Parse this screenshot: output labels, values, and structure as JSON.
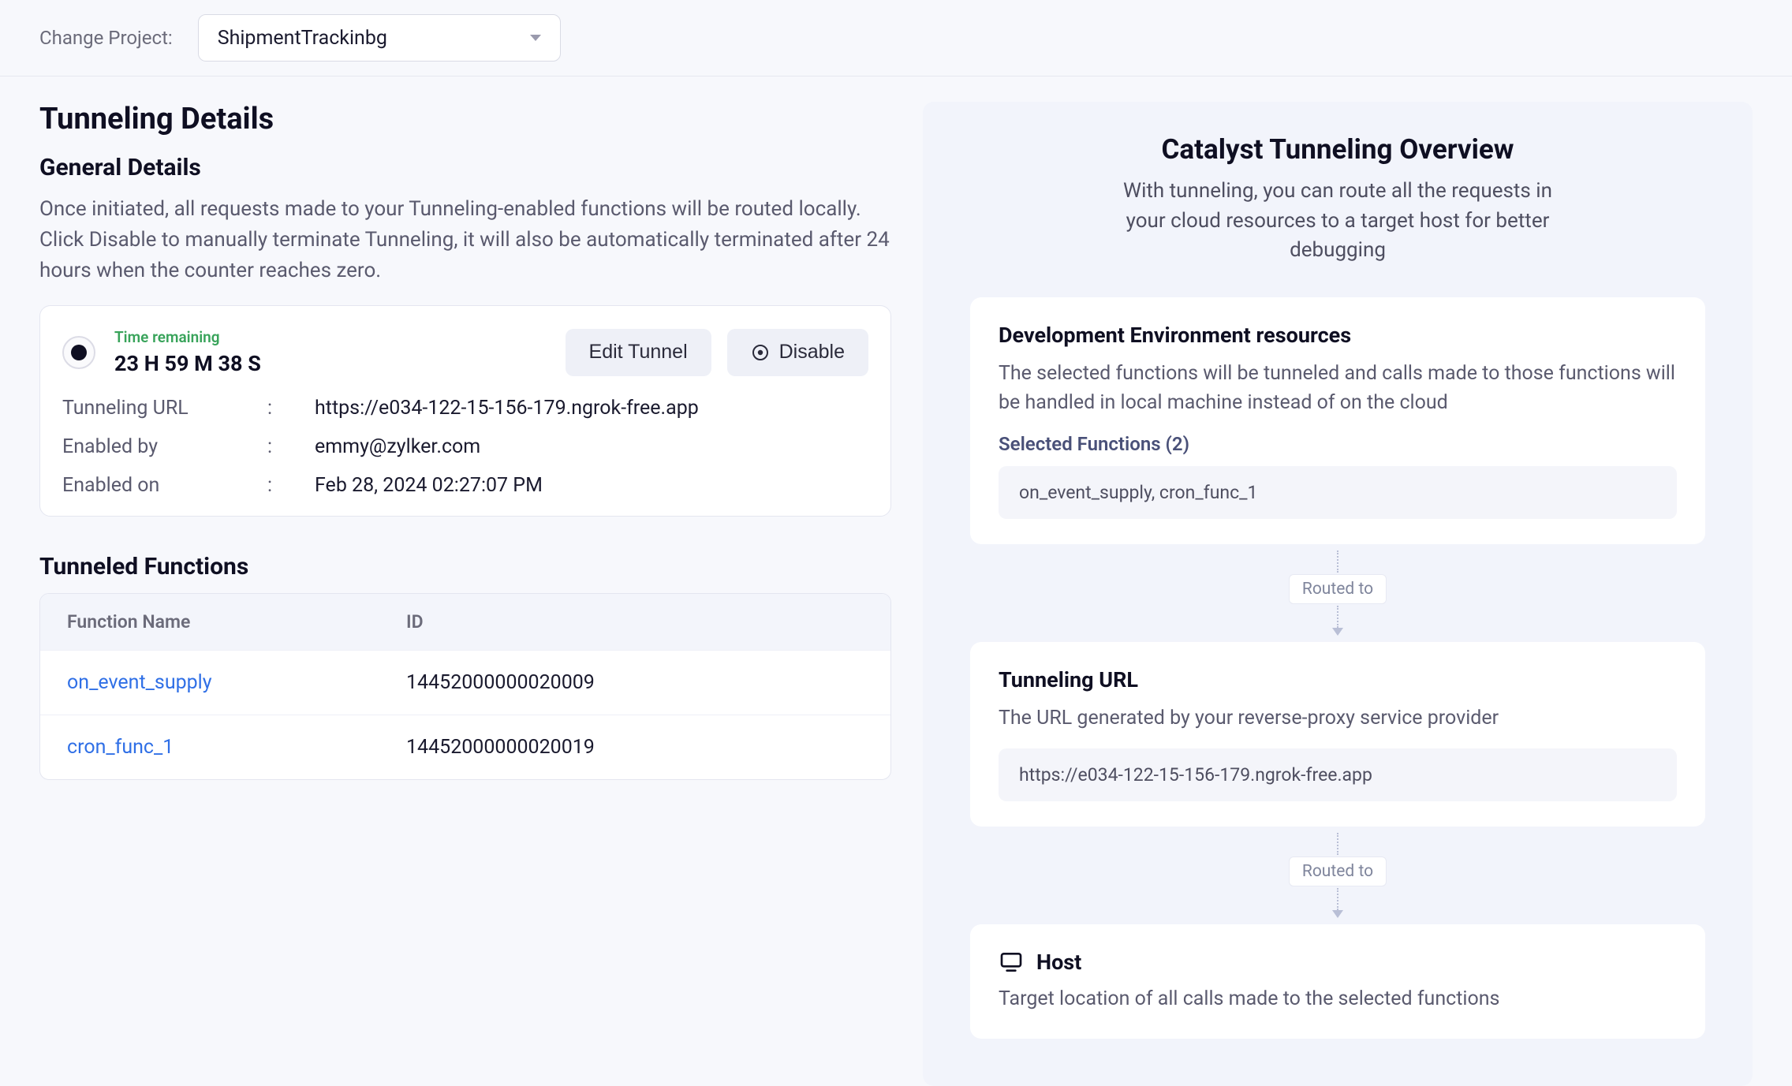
{
  "project_bar": {
    "label": "Change Project:",
    "selected": "ShipmentTrackinbg"
  },
  "left": {
    "page_title": "Tunneling Details",
    "general": {
      "title": "General Details",
      "desc": "Once initiated, all requests made to your Tunneling-enabled functions will be routed locally. Click Disable to manually terminate Tunneling, it will also be automatically terminated after 24 hours when the counter reaches zero."
    },
    "status": {
      "time_label": "Time remaining",
      "time_value": "23 H 59 M 38 S",
      "edit_btn": "Edit Tunnel",
      "disable_btn": "Disable",
      "rows": {
        "url_key": "Tunneling URL",
        "url_val": "https://e034-122-15-156-179.ngrok-free.app",
        "by_key": "Enabled by",
        "by_val": "emmy@zylker.com",
        "on_key": "Enabled on",
        "on_val": "Feb 28, 2024 02:27:07 PM"
      }
    },
    "functions": {
      "title": "Tunneled Functions",
      "head_name": "Function Name",
      "head_id": "ID",
      "rows": [
        {
          "name": "on_event_supply",
          "id": "14452000000020009"
        },
        {
          "name": "cron_func_1",
          "id": "14452000000020019"
        }
      ]
    }
  },
  "right": {
    "title": "Catalyst Tunneling Overview",
    "desc": "With tunneling, you can route all the requests in your cloud resources to a target host for better debugging",
    "routed_label": "Routed to",
    "dev_env": {
      "title": "Development Environment resources",
      "desc": "The selected functions will be tunneled and calls made to those functions will be handled in local machine instead of on the cloud",
      "selected_label": "Selected Functions  (2)",
      "selected_value": "on_event_supply, cron_func_1"
    },
    "tunnel_url": {
      "title": "Tunneling URL",
      "desc": "The URL generated by your reverse-proxy service provider",
      "value": "https://e034-122-15-156-179.ngrok-free.app"
    },
    "host": {
      "title": "Host",
      "desc": "Target location of all calls made to the selected functions"
    }
  },
  "colors": {
    "page_bg": "#f7f8fc",
    "panel_bg": "#ffffff",
    "right_bg": "#f2f4fb",
    "pill_bg": "#f4f5fa",
    "border": "#e4e6f0",
    "text_primary": "#0f0f22",
    "text_muted": "#5a5a6e",
    "link": "#2f6fe6",
    "time_green": "#38a35a",
    "btn_bg": "#eef0f7"
  }
}
